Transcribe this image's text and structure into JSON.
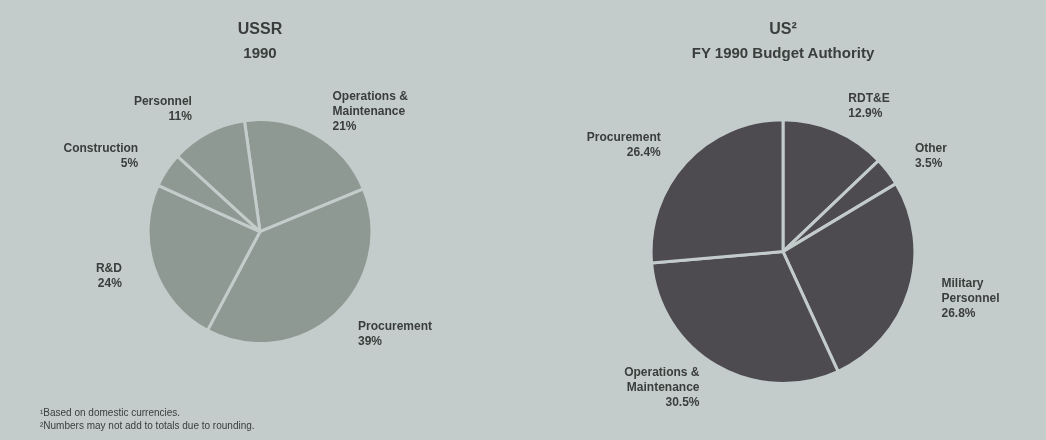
{
  "chart_data": [
    {
      "type": "pie",
      "title": "USSR",
      "subtitle": "1990",
      "categories": [
        "Operations & Maintenance",
        "Procurement",
        "R&D",
        "Construction",
        "Personnel"
      ],
      "values": [
        21,
        39,
        24,
        5,
        11
      ],
      "value_labels": [
        "21%",
        "39%",
        "24%",
        "5%",
        "11%"
      ],
      "colors": [
        "#8f9994",
        "#8f9994",
        "#8f9994",
        "#8f9994",
        "#8f9994"
      ],
      "legend": false,
      "annotations": [
        "¹Based on domestic currencies.",
        "²Numbers may not add to totals due to rounding."
      ]
    },
    {
      "type": "pie",
      "title": "US²",
      "subtitle": "FY 1990 Budget Authority",
      "categories": [
        "RDT&E",
        "Other",
        "Military Personnel",
        "Operations & Maintenance",
        "Procurement"
      ],
      "values": [
        12.9,
        3.5,
        26.8,
        30.5,
        26.4
      ],
      "value_labels": [
        "12.9%",
        "3.5%",
        "26.8%",
        "30.5%",
        "26.4%"
      ],
      "colors": [
        "#4d4b50",
        "#4d4b50",
        "#4d4b50",
        "#4d4b50",
        "#4d4b50"
      ],
      "legend": false
    }
  ]
}
